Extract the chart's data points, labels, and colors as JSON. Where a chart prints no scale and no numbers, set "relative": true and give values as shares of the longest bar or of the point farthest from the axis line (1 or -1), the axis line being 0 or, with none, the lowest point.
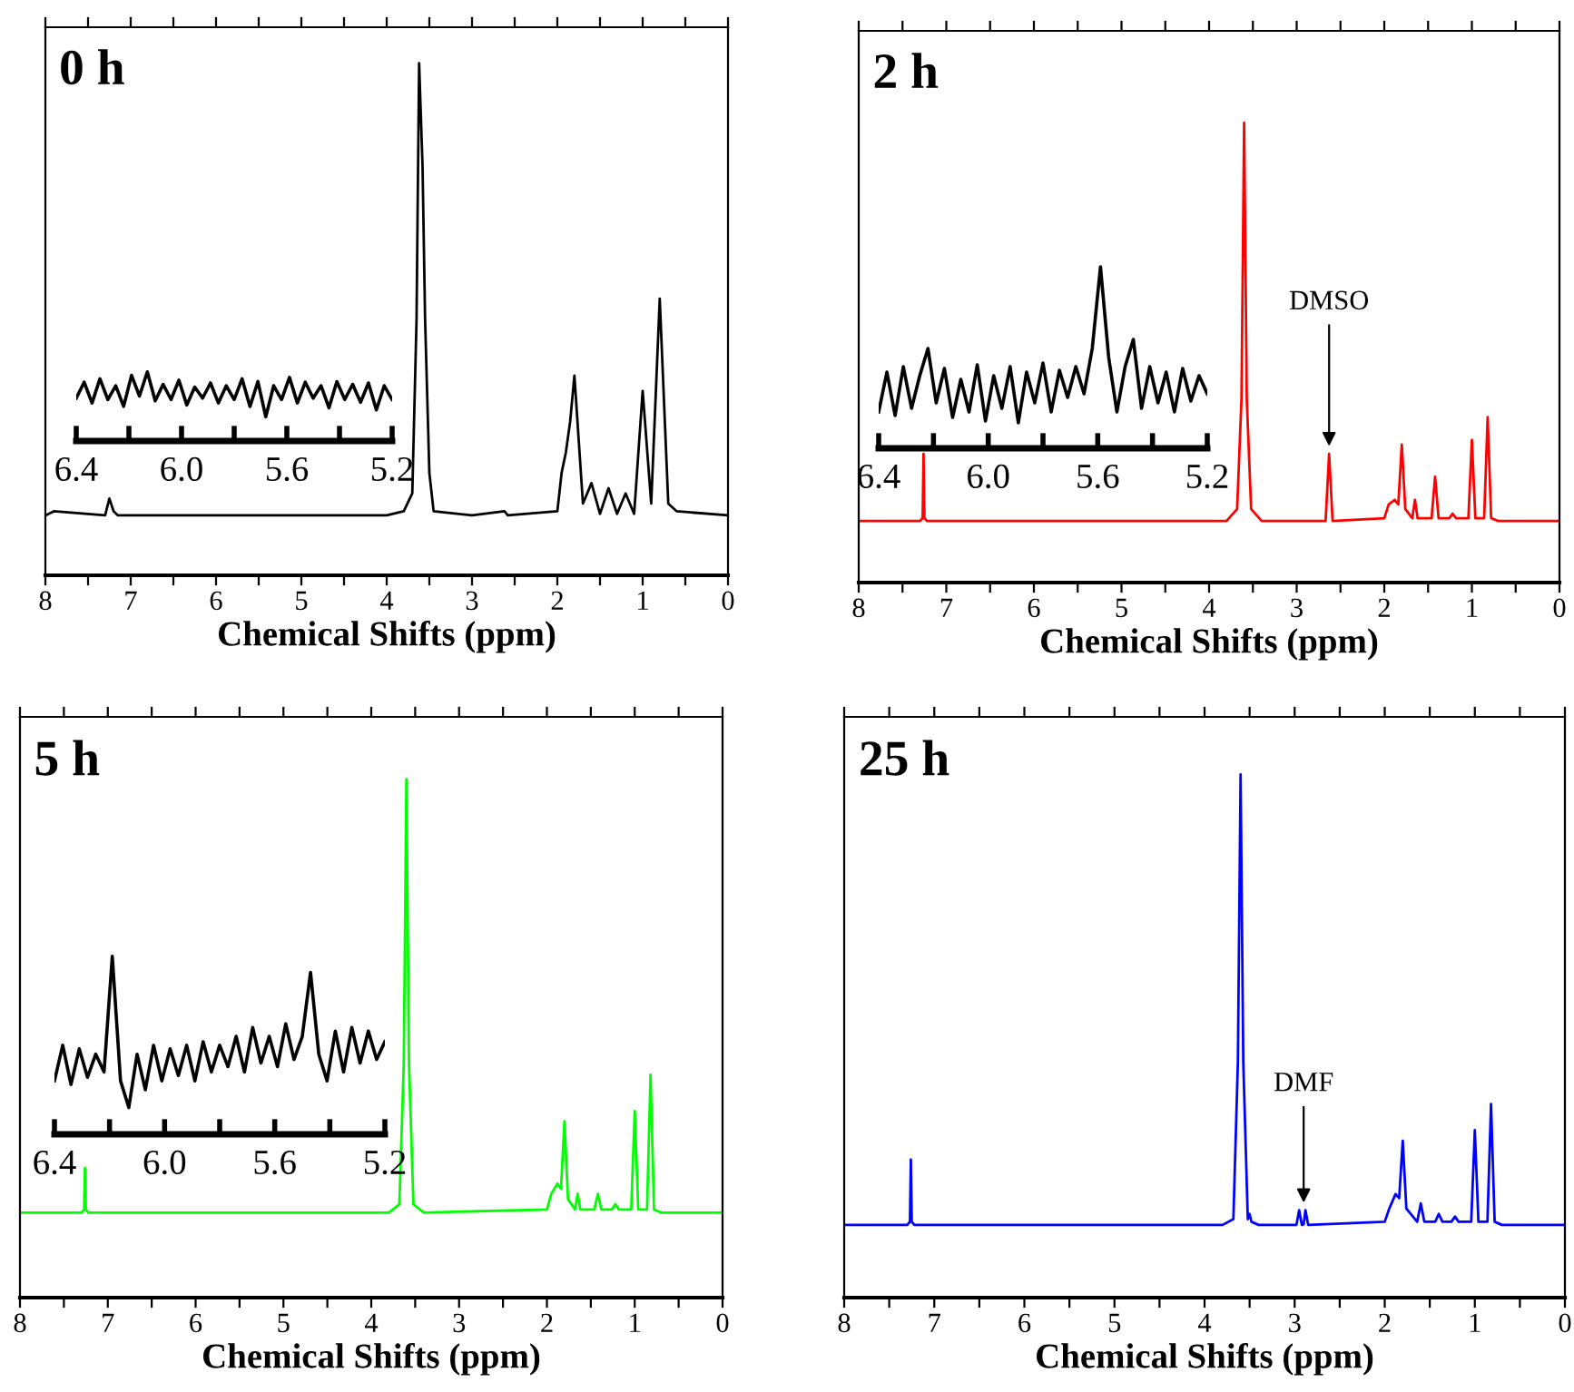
{
  "chart_data": [
    {
      "type": "line",
      "title": "0 h",
      "xlabel": "Chemical Shifts (ppm)",
      "relative": true,
      "tick_labels": "x",
      "xlim": [
        8,
        0
      ],
      "xticks": [
        8,
        {
          "value": 7.5,
          "label": null
        },
        7,
        {
          "value": 6.5,
          "label": null
        },
        6,
        {
          "value": 5.5,
          "label": null
        },
        5,
        {
          "value": 4.5,
          "label": null
        },
        4,
        {
          "value": 3.5,
          "label": null
        },
        3,
        {
          "value": 2.5,
          "label": null
        },
        2,
        {
          "value": 1.5,
          "label": null
        },
        1,
        {
          "value": 0.5,
          "label": null
        },
        0
      ],
      "series": [
        {
          "color": "#000000",
          "x": [
            8.0,
            7.9,
            7.3,
            7.25,
            7.2,
            7.15,
            4.0,
            3.8,
            3.7,
            3.65,
            3.62,
            3.58,
            3.55,
            3.5,
            3.45,
            3.0,
            2.62,
            2.58,
            2.0,
            1.95,
            1.9,
            1.85,
            1.8,
            1.7,
            1.6,
            1.5,
            1.4,
            1.3,
            1.2,
            1.1,
            1.0,
            0.9,
            0.8,
            0.7,
            0.6,
            0.0
          ],
          "values": [
            0.117,
            0.125,
            0.117,
            0.15,
            0.125,
            0.117,
            0.117,
            0.125,
            0.16,
            0.5,
            1.0,
            0.8,
            0.5,
            0.2,
            0.125,
            0.117,
            0.125,
            0.117,
            0.125,
            0.2,
            0.24,
            0.3,
            0.39,
            0.14,
            0.18,
            0.12,
            0.17,
            0.12,
            0.16,
            0.12,
            0.36,
            0.14,
            0.54,
            0.14,
            0.125,
            0.117
          ]
        }
      ]
    },
    {
      "type": "line",
      "relative": true,
      "tick_labels": "x",
      "xlim": [
        6.4,
        5.2
      ],
      "xticks": [
        {
          "value": 6.4,
          "label": "6.4"
        },
        {
          "value": 6.2,
          "label": null
        },
        {
          "value": 6.0,
          "label": "6.0"
        },
        {
          "value": 5.8,
          "label": null
        },
        {
          "value": 5.6,
          "label": "5.6"
        },
        {
          "value": 5.4,
          "label": null
        },
        {
          "value": 5.2,
          "label": "5.2"
        }
      ],
      "series": [
        {
          "color": "#000000",
          "x": [
            6.4,
            6.37,
            6.34,
            6.31,
            6.28,
            6.25,
            6.22,
            6.19,
            6.16,
            6.13,
            6.1,
            6.07,
            6.04,
            6.01,
            5.98,
            5.95,
            5.92,
            5.89,
            5.86,
            5.83,
            5.8,
            5.77,
            5.74,
            5.71,
            5.68,
            5.65,
            5.62,
            5.59,
            5.56,
            5.53,
            5.5,
            5.47,
            5.44,
            5.41,
            5.38,
            5.35,
            5.32,
            5.29,
            5.26,
            5.23,
            5.2
          ],
          "values": [
            0.62,
            0.85,
            0.55,
            0.9,
            0.6,
            0.8,
            0.5,
            0.95,
            0.65,
            1.0,
            0.58,
            0.82,
            0.6,
            0.88,
            0.52,
            0.78,
            0.62,
            0.84,
            0.55,
            0.8,
            0.6,
            0.9,
            0.5,
            0.86,
            0.35,
            0.8,
            0.6,
            0.92,
            0.55,
            0.85,
            0.62,
            0.8,
            0.48,
            0.86,
            0.6,
            0.82,
            0.56,
            0.84,
            0.45,
            0.8,
            0.6
          ]
        }
      ]
    },
    {
      "type": "line",
      "title": "2 h",
      "xlabel": "Chemical Shifts (ppm)",
      "relative": true,
      "tick_labels": "x",
      "xlim": [
        8,
        0
      ],
      "xticks": [
        8,
        {
          "value": 7.5,
          "label": null
        },
        7,
        {
          "value": 6.5,
          "label": null
        },
        6,
        {
          "value": 5.5,
          "label": null
        },
        5,
        {
          "value": 4.5,
          "label": null
        },
        4,
        {
          "value": 3.5,
          "label": null
        },
        3,
        {
          "value": 2.5,
          "label": null
        },
        2,
        {
          "value": 1.5,
          "label": null
        },
        1,
        {
          "value": 0.5,
          "label": null
        },
        0
      ],
      "annotations": [
        {
          "text": "DMSO",
          "x": 2.63,
          "y": 0.28
        }
      ],
      "series": [
        {
          "color": "#ff0000",
          "x": [
            8.0,
            7.3,
            7.27,
            7.26,
            7.25,
            7.22,
            3.8,
            3.68,
            3.63,
            3.6,
            3.57,
            3.52,
            3.4,
            2.67,
            2.63,
            2.59,
            2.0,
            1.95,
            1.88,
            1.84,
            1.8,
            1.76,
            1.68,
            1.65,
            1.62,
            1.46,
            1.42,
            1.38,
            1.26,
            1.22,
            1.18,
            1.04,
            1.0,
            0.96,
            0.86,
            0.82,
            0.78,
            0.7,
            0.0
          ],
          "values": [
            0.134,
            0.134,
            0.14,
            0.28,
            0.14,
            0.134,
            0.134,
            0.16,
            0.4,
            1.0,
            0.4,
            0.16,
            0.134,
            0.134,
            0.28,
            0.134,
            0.14,
            0.17,
            0.18,
            0.17,
            0.3,
            0.16,
            0.14,
            0.18,
            0.14,
            0.14,
            0.23,
            0.14,
            0.14,
            0.15,
            0.14,
            0.14,
            0.31,
            0.14,
            0.14,
            0.36,
            0.14,
            0.134,
            0.134
          ]
        }
      ]
    },
    {
      "type": "line",
      "relative": true,
      "tick_labels": "x",
      "xlim": [
        6.4,
        5.2
      ],
      "xticks": [
        {
          "value": 6.4,
          "label": "6.4"
        },
        {
          "value": 6.2,
          "label": null
        },
        {
          "value": 6.0,
          "label": "6.0"
        },
        {
          "value": 5.8,
          "label": null
        },
        {
          "value": 5.6,
          "label": "5.6"
        },
        {
          "value": 5.4,
          "label": null
        },
        {
          "value": 5.2,
          "label": "5.2"
        }
      ],
      "series": [
        {
          "color": "#000000",
          "x": [
            6.4,
            6.37,
            6.34,
            6.31,
            6.28,
            6.25,
            6.22,
            6.19,
            6.16,
            6.13,
            6.1,
            6.07,
            6.04,
            6.01,
            5.98,
            5.95,
            5.92,
            5.89,
            5.86,
            5.83,
            5.8,
            5.77,
            5.74,
            5.71,
            5.68,
            5.65,
            5.62,
            5.59,
            5.56,
            5.53,
            5.5,
            5.47,
            5.44,
            5.41,
            5.38,
            5.35,
            5.32,
            5.29,
            5.26,
            5.23,
            5.2
          ],
          "values": [
            0.2,
            0.42,
            0.18,
            0.45,
            0.22,
            0.4,
            0.55,
            0.25,
            0.44,
            0.17,
            0.38,
            0.2,
            0.46,
            0.15,
            0.4,
            0.22,
            0.45,
            0.14,
            0.42,
            0.25,
            0.47,
            0.2,
            0.43,
            0.28,
            0.45,
            0.3,
            0.55,
            1.0,
            0.5,
            0.2,
            0.45,
            0.6,
            0.22,
            0.45,
            0.25,
            0.42,
            0.2,
            0.44,
            0.26,
            0.4,
            0.3
          ]
        }
      ]
    },
    {
      "type": "line",
      "title": "5 h",
      "xlabel": "Chemical Shifts (ppm)",
      "relative": true,
      "tick_labels": "x",
      "xlim": [
        8,
        0
      ],
      "xticks": [
        8,
        {
          "value": 7.5,
          "label": null
        },
        7,
        {
          "value": 6.5,
          "label": null
        },
        6,
        {
          "value": 5.5,
          "label": null
        },
        5,
        {
          "value": 4.5,
          "label": null
        },
        4,
        {
          "value": 3.5,
          "label": null
        },
        3,
        {
          "value": 2.5,
          "label": null
        },
        2,
        {
          "value": 1.5,
          "label": null
        },
        1,
        {
          "value": 0.5,
          "label": null
        },
        0
      ],
      "series": [
        {
          "color": "#00ff00",
          "x": [
            8.0,
            7.3,
            7.27,
            7.26,
            7.25,
            7.22,
            3.8,
            3.68,
            3.63,
            3.6,
            3.57,
            3.52,
            3.4,
            2.0,
            1.95,
            1.88,
            1.84,
            1.8,
            1.76,
            1.68,
            1.65,
            1.62,
            1.46,
            1.42,
            1.38,
            1.26,
            1.22,
            1.18,
            1.04,
            1.0,
            0.96,
            0.86,
            0.82,
            0.78,
            0.7,
            0.0
          ],
          "values": [
            0.164,
            0.164,
            0.17,
            0.25,
            0.17,
            0.164,
            0.164,
            0.18,
            0.45,
            1.0,
            0.45,
            0.18,
            0.164,
            0.17,
            0.2,
            0.22,
            0.21,
            0.34,
            0.19,
            0.17,
            0.2,
            0.17,
            0.17,
            0.2,
            0.17,
            0.17,
            0.18,
            0.17,
            0.17,
            0.36,
            0.17,
            0.17,
            0.43,
            0.17,
            0.164,
            0.164
          ]
        }
      ]
    },
    {
      "type": "line",
      "relative": true,
      "tick_labels": "x",
      "xlim": [
        6.4,
        5.2
      ],
      "xticks": [
        {
          "value": 6.4,
          "label": "6.4"
        },
        {
          "value": 6.2,
          "label": null
        },
        {
          "value": 6.0,
          "label": "6.0"
        },
        {
          "value": 5.8,
          "label": null
        },
        {
          "value": 5.6,
          "label": "5.6"
        },
        {
          "value": 5.4,
          "label": null
        },
        {
          "value": 5.2,
          "label": "5.2"
        }
      ],
      "series": [
        {
          "color": "#000000",
          "x": [
            6.4,
            6.37,
            6.34,
            6.31,
            6.28,
            6.25,
            6.22,
            6.19,
            6.16,
            6.13,
            6.1,
            6.07,
            6.04,
            6.01,
            5.98,
            5.95,
            5.92,
            5.89,
            5.86,
            5.83,
            5.8,
            5.77,
            5.74,
            5.71,
            5.68,
            5.65,
            5.62,
            5.59,
            5.56,
            5.53,
            5.5,
            5.47,
            5.44,
            5.41,
            5.38,
            5.35,
            5.32,
            5.29,
            5.26,
            5.23,
            5.2
          ],
          "values": [
            0.3,
            0.5,
            0.28,
            0.48,
            0.32,
            0.45,
            0.35,
            1.0,
            0.3,
            0.15,
            0.45,
            0.25,
            0.5,
            0.3,
            0.48,
            0.33,
            0.5,
            0.3,
            0.52,
            0.35,
            0.5,
            0.38,
            0.55,
            0.35,
            0.6,
            0.4,
            0.55,
            0.38,
            0.62,
            0.42,
            0.55,
            0.91,
            0.45,
            0.3,
            0.58,
            0.35,
            0.6,
            0.4,
            0.58,
            0.42,
            0.52
          ]
        }
      ]
    },
    {
      "type": "line",
      "title": "25 h",
      "xlabel": "Chemical Shifts (ppm)",
      "relative": true,
      "tick_labels": "x",
      "xlim": [
        8,
        0
      ],
      "xticks": [
        8,
        {
          "value": 7.5,
          "label": null
        },
        7,
        {
          "value": 6.5,
          "label": null
        },
        6,
        {
          "value": 5.5,
          "label": null
        },
        5,
        {
          "value": 4.5,
          "label": null
        },
        4,
        {
          "value": 3.5,
          "label": null
        },
        3,
        {
          "value": 2.5,
          "label": null
        },
        2,
        {
          "value": 1.5,
          "label": null
        },
        1,
        {
          "value": 0.5,
          "label": null
        },
        0
      ],
      "annotations": [
        {
          "text": "DMF",
          "x": 2.9,
          "y": 0.167
        }
      ],
      "series": [
        {
          "color": "#0000ff",
          "x": [
            8.0,
            7.3,
            7.27,
            7.26,
            7.25,
            7.22,
            3.8,
            3.68,
            3.63,
            3.6,
            3.57,
            3.52,
            3.5,
            3.48,
            3.4,
            2.98,
            2.95,
            2.92,
            2.9,
            2.88,
            2.85,
            2.0,
            1.95,
            1.88,
            1.84,
            1.8,
            1.76,
            1.64,
            1.6,
            1.56,
            1.44,
            1.4,
            1.36,
            1.26,
            1.22,
            1.18,
            1.04,
            1.0,
            0.96,
            0.86,
            0.82,
            0.78,
            0.7,
            0.0
          ],
          "values": [
            0.139,
            0.139,
            0.145,
            0.264,
            0.145,
            0.139,
            0.139,
            0.15,
            0.45,
            1.0,
            0.45,
            0.15,
            0.16,
            0.145,
            0.139,
            0.139,
            0.167,
            0.139,
            0.14,
            0.167,
            0.139,
            0.145,
            0.17,
            0.198,
            0.19,
            0.3,
            0.17,
            0.145,
            0.18,
            0.145,
            0.145,
            0.16,
            0.145,
            0.145,
            0.155,
            0.145,
            0.145,
            0.32,
            0.145,
            0.145,
            0.37,
            0.145,
            0.139,
            0.139
          ]
        }
      ]
    }
  ]
}
